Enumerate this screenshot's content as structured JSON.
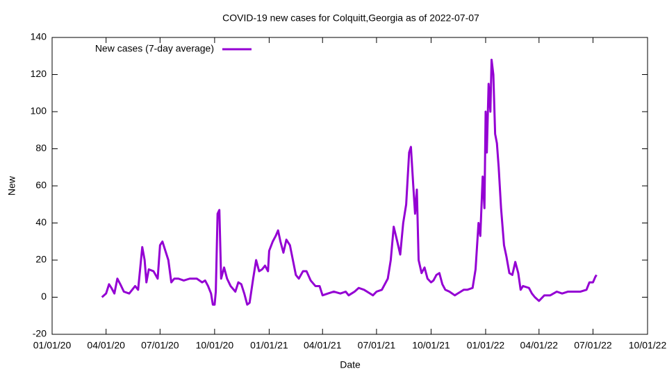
{
  "chart_data": {
    "type": "line",
    "title": "COVID-19 new cases for Colquitt,Georgia as of 2022-07-07",
    "x_label": "Date",
    "y_label": "New",
    "x": [
      "2020-03-25",
      "2020-04-01",
      "2020-04-06",
      "2020-04-10",
      "2020-04-15",
      "2020-04-20",
      "2020-04-25",
      "2020-05-01",
      "2020-05-10",
      "2020-05-20",
      "2020-05-25",
      "2020-06-01",
      "2020-06-05",
      "2020-06-08",
      "2020-06-12",
      "2020-06-20",
      "2020-06-27",
      "2020-07-01",
      "2020-07-05",
      "2020-07-10",
      "2020-07-15",
      "2020-07-20",
      "2020-07-25",
      "2020-08-01",
      "2020-08-10",
      "2020-08-20",
      "2020-09-01",
      "2020-09-10",
      "2020-09-15",
      "2020-09-20",
      "2020-09-25",
      "2020-09-28",
      "2020-10-01",
      "2020-10-03",
      "2020-10-06",
      "2020-10-09",
      "2020-10-12",
      "2020-10-17",
      "2020-10-22",
      "2020-10-28",
      "2020-11-05",
      "2020-11-10",
      "2020-11-15",
      "2020-11-20",
      "2020-11-25",
      "2020-11-29",
      "2020-12-05",
      "2020-12-10",
      "2020-12-15",
      "2020-12-20",
      "2020-12-25",
      "2020-12-30",
      "2021-01-01",
      "2021-01-07",
      "2021-01-12",
      "2021-01-16",
      "2021-01-20",
      "2021-01-25",
      "2021-01-30",
      "2021-02-05",
      "2021-02-10",
      "2021-02-15",
      "2021-02-20",
      "2021-02-27",
      "2021-03-05",
      "2021-03-12",
      "2021-03-20",
      "2021-03-27",
      "2021-04-01",
      "2021-04-10",
      "2021-04-20",
      "2021-05-01",
      "2021-05-10",
      "2021-05-15",
      "2021-05-25",
      "2021-06-01",
      "2021-06-10",
      "2021-06-20",
      "2021-06-25",
      "2021-07-01",
      "2021-07-10",
      "2021-07-20",
      "2021-07-25",
      "2021-07-30",
      "2021-08-05",
      "2021-08-10",
      "2021-08-15",
      "2021-08-20",
      "2021-08-25",
      "2021-08-28",
      "2021-09-01",
      "2021-09-04",
      "2021-09-07",
      "2021-09-10",
      "2021-09-15",
      "2021-09-20",
      "2021-09-25",
      "2021-10-01",
      "2021-10-05",
      "2021-10-10",
      "2021-10-15",
      "2021-10-20",
      "2021-10-25",
      "2021-11-01",
      "2021-11-10",
      "2021-11-15",
      "2021-11-20",
      "2021-11-25",
      "2021-12-01",
      "2021-12-10",
      "2021-12-15",
      "2021-12-20",
      "2021-12-23",
      "2021-12-27",
      "2021-12-30",
      "2022-01-01",
      "2022-01-03",
      "2022-01-06",
      "2022-01-09",
      "2022-01-11",
      "2022-01-14",
      "2022-01-17",
      "2022-01-20",
      "2022-01-23",
      "2022-01-27",
      "2022-02-01",
      "2022-02-05",
      "2022-02-10",
      "2022-02-15",
      "2022-02-20",
      "2022-02-25",
      "2022-03-01",
      "2022-03-05",
      "2022-03-15",
      "2022-03-20",
      "2022-03-25",
      "2022-04-01",
      "2022-04-10",
      "2022-04-20",
      "2022-05-01",
      "2022-05-10",
      "2022-05-20",
      "2022-06-01",
      "2022-06-10",
      "2022-06-20",
      "2022-06-25",
      "2022-07-01",
      "2022-07-05",
      "2022-07-07"
    ],
    "series": [
      {
        "name": "New cases (7-day average)",
        "color": "#9400d3",
        "values": [
          0,
          2,
          7,
          5,
          2,
          10,
          7,
          3,
          2,
          6,
          4,
          27,
          20,
          8,
          15,
          14,
          10,
          28,
          30,
          25,
          20,
          8,
          10,
          10,
          9,
          10,
          10,
          8,
          9,
          6,
          2,
          -4,
          -4,
          3,
          45,
          47,
          10,
          16,
          10,
          6,
          3,
          8,
          7,
          2,
          -4,
          -3,
          10,
          20,
          14,
          15,
          17,
          14,
          25,
          30,
          33,
          36,
          30,
          24,
          31,
          28,
          20,
          12,
          10,
          14,
          14,
          9,
          6,
          6,
          1,
          2,
          3,
          2,
          3,
          1,
          3,
          5,
          4,
          2,
          1,
          3,
          4,
          10,
          20,
          38,
          30,
          23,
          40,
          50,
          78,
          81,
          60,
          45,
          58,
          20,
          13,
          16,
          10,
          8,
          9,
          12,
          13,
          7,
          4,
          3,
          1,
          2,
          3,
          4,
          4,
          5,
          15,
          40,
          33,
          65,
          48,
          100,
          78,
          115,
          100,
          128,
          120,
          88,
          83,
          70,
          48,
          28,
          22,
          13,
          12,
          19,
          13,
          4,
          6,
          5,
          2,
          0,
          -2,
          1,
          1,
          3,
          2,
          3,
          3,
          3,
          4,
          8,
          8,
          11,
          12
        ]
      }
    ],
    "xlim": [
      "2020-01-01",
      "2022-10-01"
    ],
    "xticks": [
      {
        "value": "2020-01-01",
        "label": "01/01/20"
      },
      {
        "value": "2020-04-01",
        "label": "04/01/20"
      },
      {
        "value": "2020-07-01",
        "label": "07/01/20"
      },
      {
        "value": "2020-10-01",
        "label": "10/01/20"
      },
      {
        "value": "2021-01-01",
        "label": "01/01/21"
      },
      {
        "value": "2021-04-01",
        "label": "04/01/21"
      },
      {
        "value": "2021-07-01",
        "label": "07/01/21"
      },
      {
        "value": "2021-10-01",
        "label": "10/01/21"
      },
      {
        "value": "2022-01-01",
        "label": "01/01/22"
      },
      {
        "value": "2022-04-01",
        "label": "04/01/22"
      },
      {
        "value": "2022-07-01",
        "label": "07/01/22"
      },
      {
        "value": "2022-10-01",
        "label": "10/01/22"
      }
    ],
    "ylim": [
      -20,
      140
    ],
    "yticks": [
      -20,
      0,
      20,
      40,
      60,
      80,
      100,
      120,
      140
    ],
    "legend": "top-left",
    "grid": false
  }
}
